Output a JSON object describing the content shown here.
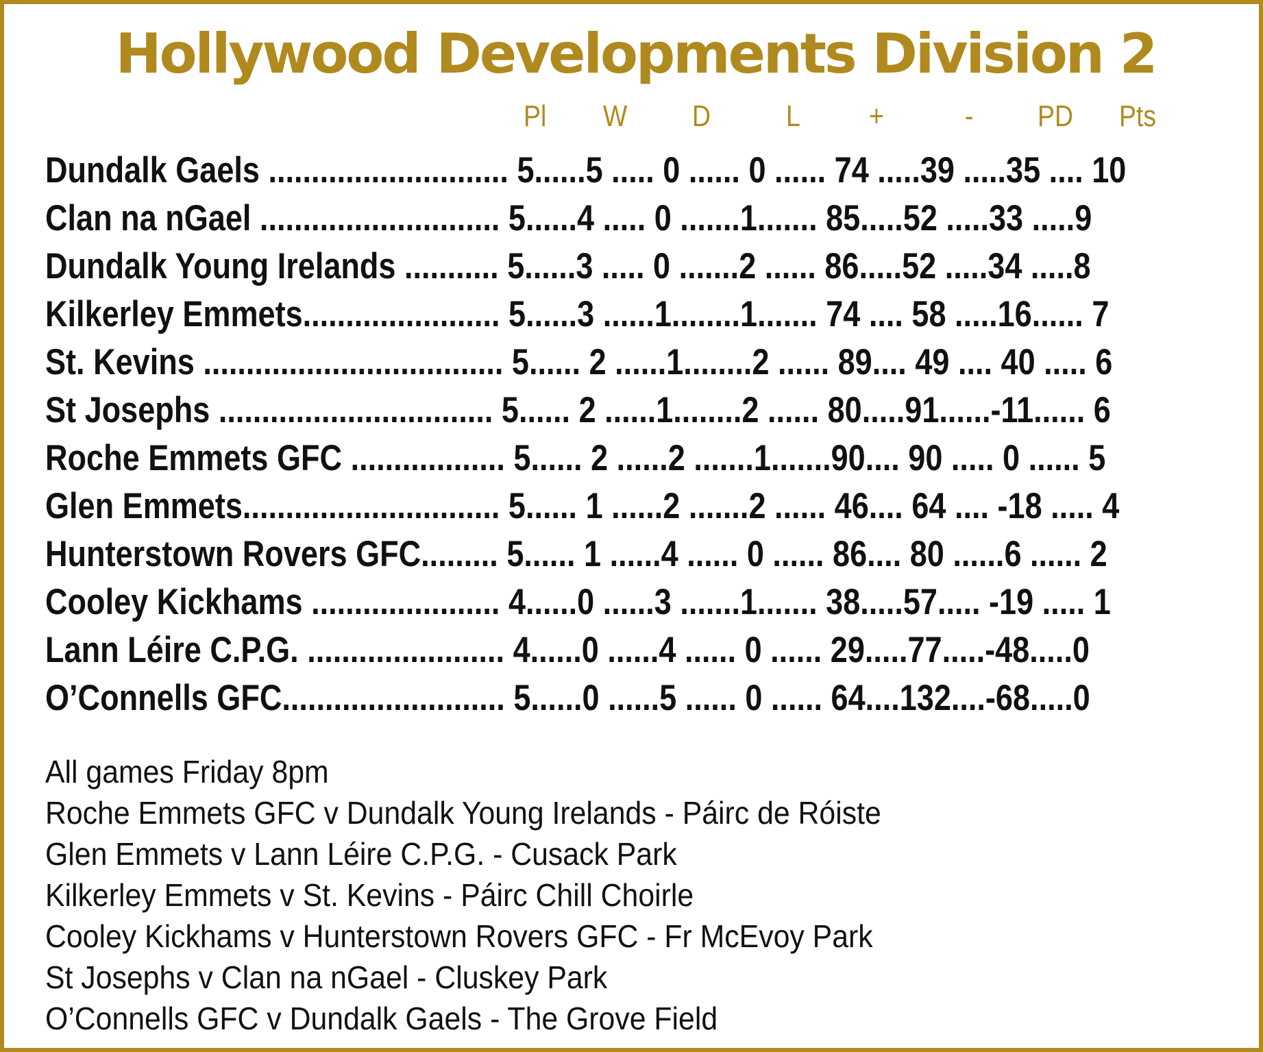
{
  "title": "Hollywood Developments Division 2",
  "colors": {
    "accent": "#b08a1e",
    "text": "#111111",
    "background": "#ffffff"
  },
  "headers": [
    "Pl",
    "W",
    "D",
    "L",
    "+",
    "-",
    "PD",
    "Pts"
  ],
  "rows": [
    "Dundalk Gaels ............................ 5......5 ..... 0 ...... 0 ...... 74 .....39 .....35 .... 10",
    "Clan na nGael ............................ 5......4 ..... 0 .......1....... 85.....52 .....33 .....9",
    "Dundalk Young Irelands ........... 5......3 ..... 0 .......2 ...... 86.....52 .....34 .....8",
    "Kilkerley Emmets....................... 5......3 ......1........1....... 74 .... 58 .....16...... 7",
    "St. Kevins ................................... 5...... 2 ......1........2 ...... 89.... 49 .... 40 ..... 6",
    "St Josephs ................................ 5...... 2 ......1........2 ...... 80.....91......-11...... 6",
    "Roche Emmets GFC .................. 5...... 2 ......2 .......1.......90.... 90 ..... 0 ...... 5",
    "Glen Emmets.............................. 5...... 1 ......2 .......2 ...... 46.... 64 .... -18 ..... 4",
    "Hunterstown Rovers GFC......... 5...... 1 ......4 ...... 0 ...... 86.... 80 ......6 ...... 2",
    "Cooley Kickhams ...................... 4......0 ......3 .......1....... 38.....57..... -19 ..... 1",
    "Lann Léire C.P.G. ....................... 4......0 ......4 ...... 0 ...... 29.....77.....-48.....0",
    "O’Connells GFC.......................... 5......0 ......5 ...... 0 ...... 64....132....-68.....0"
  ],
  "fixtures": [
    "All games Friday 8pm",
    "Roche Emmets GFC v Dundalk Young Irelands - Páirc de Róiste",
    "Glen Emmets v Lann Léire C.P.G. - Cusack Park",
    "Kilkerley Emmets v St. Kevins - Páirc Chill Choirle",
    "Cooley Kickhams v Hunterstown Rovers GFC - Fr McEvoy Park",
    "St Josephs v Clan na nGael  - Cluskey Park",
    "O’Connells GFC v Dundalk Gaels - The Grove Field"
  ]
}
